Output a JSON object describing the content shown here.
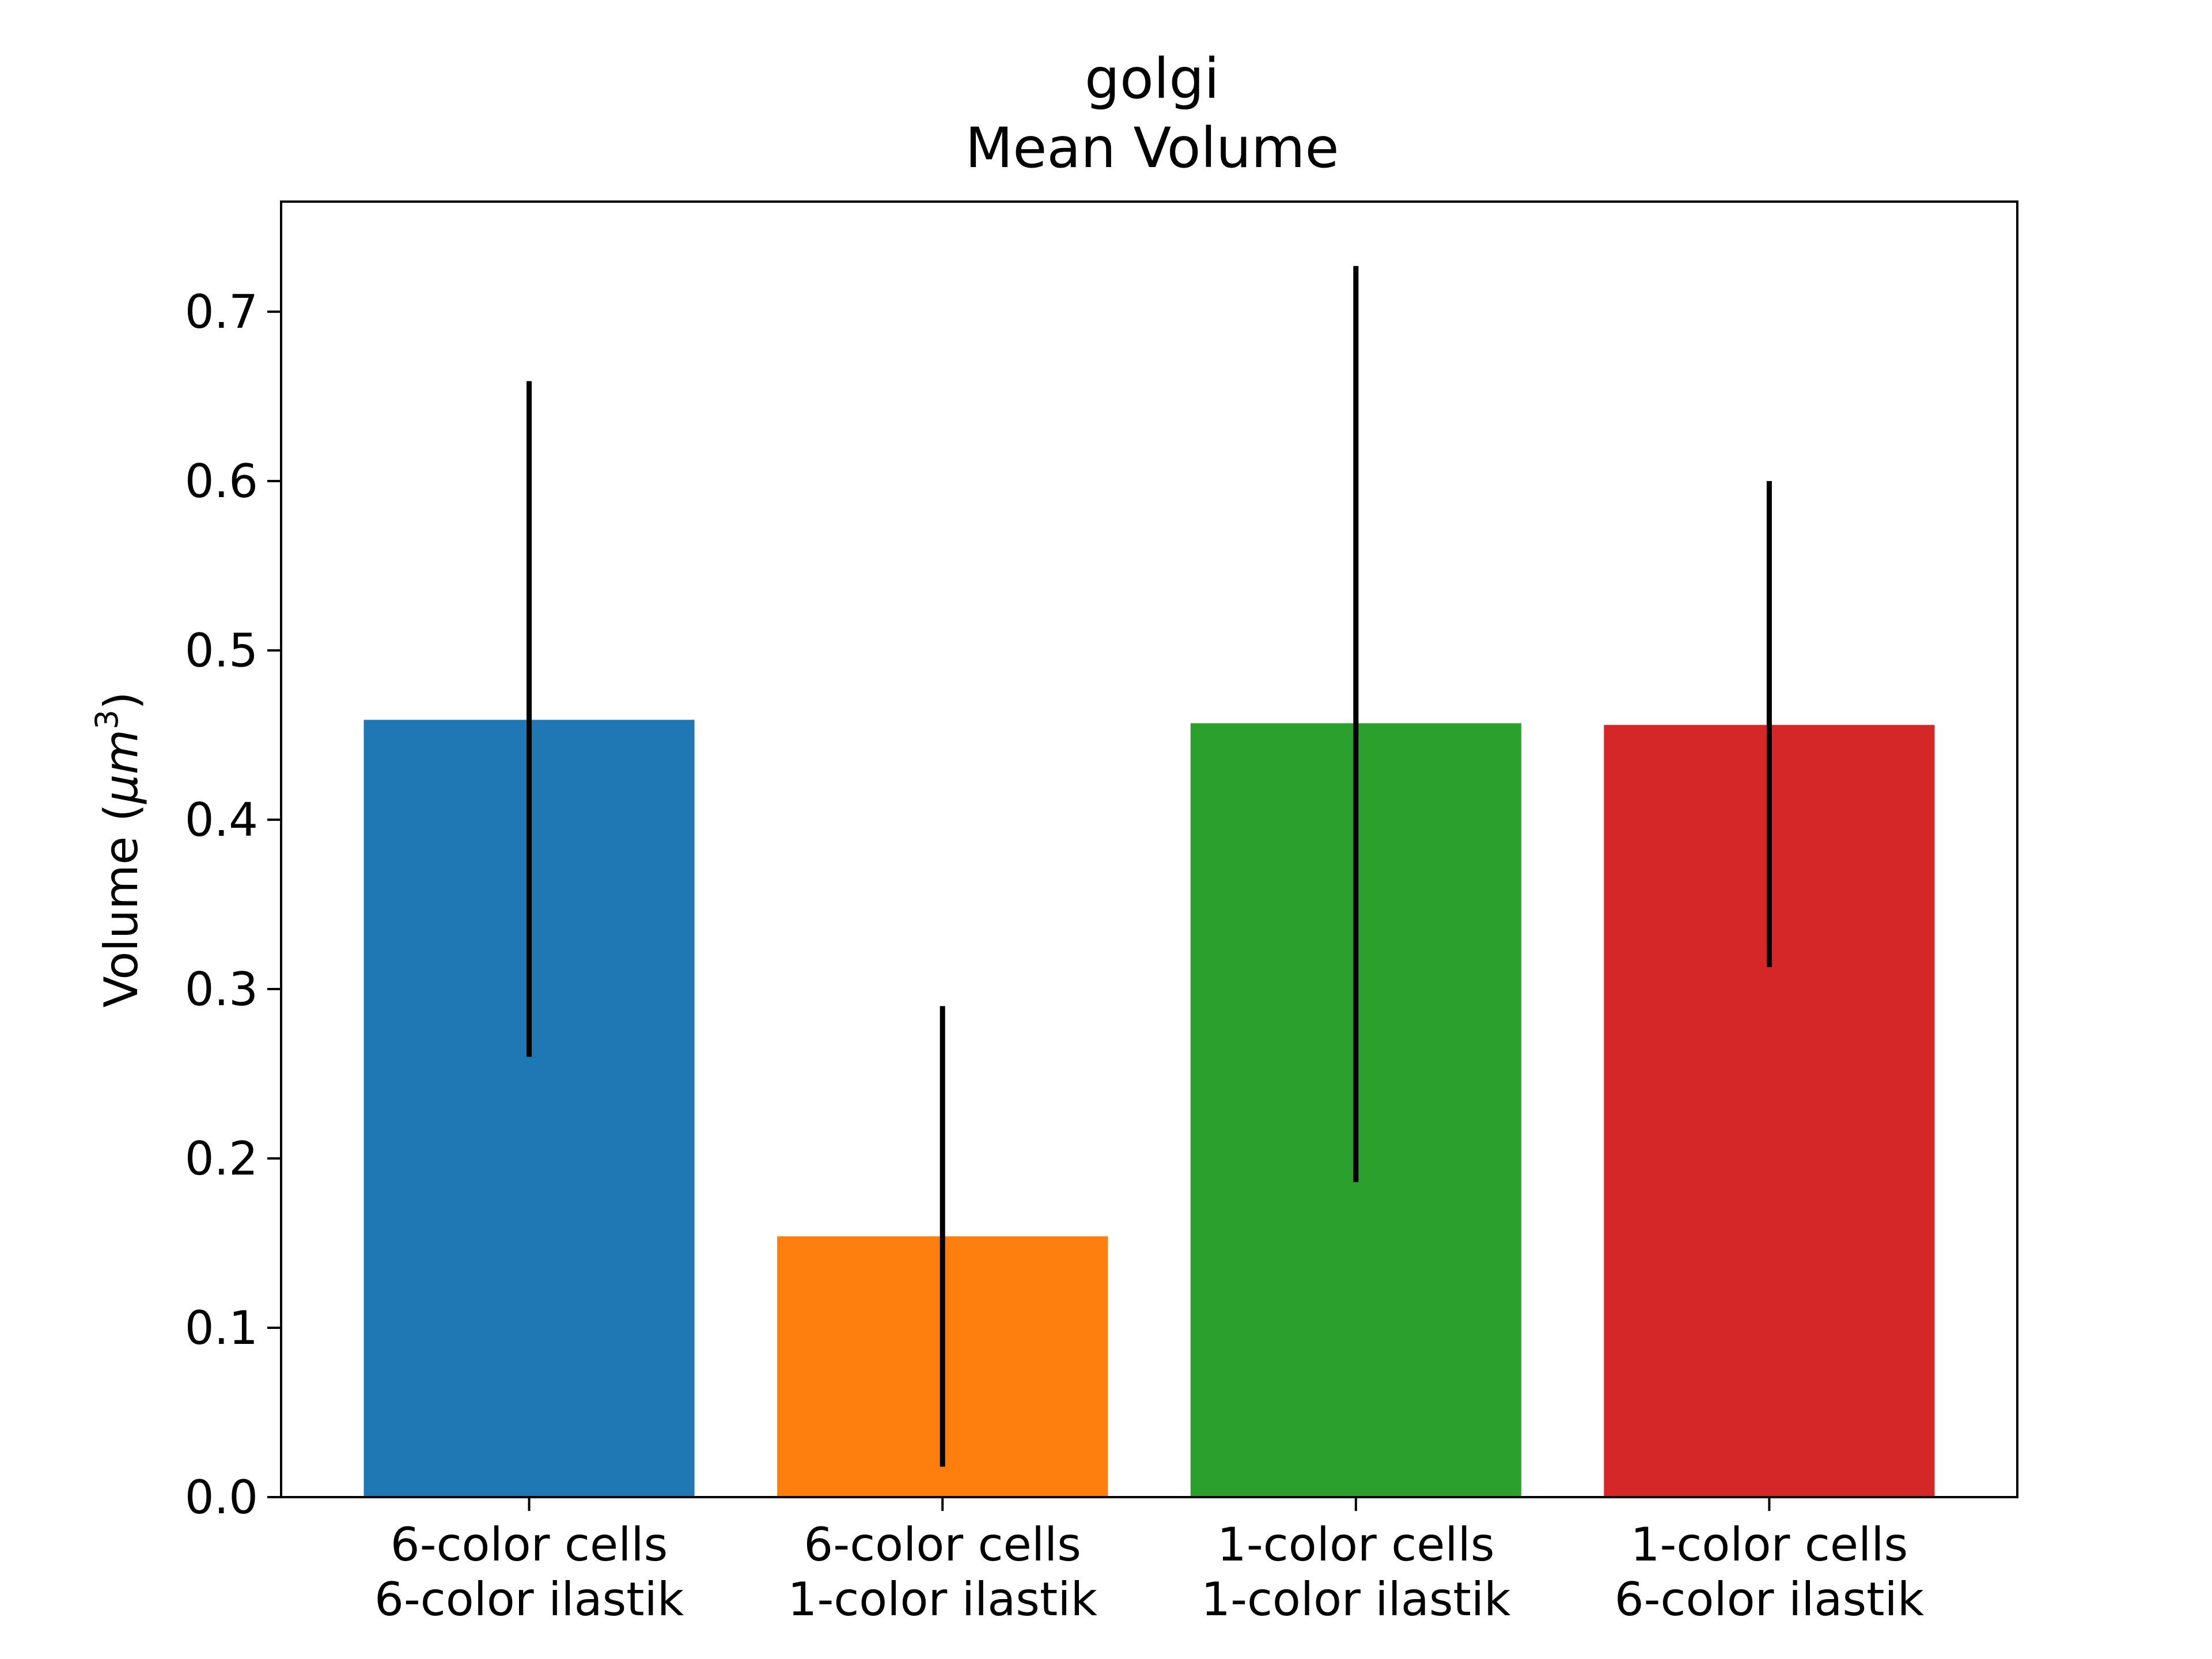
{
  "chart_data": {
    "type": "bar",
    "title_line1": "golgi",
    "title_line2": "Mean Volume",
    "ylabel_prefix": "Volume (",
    "ylabel_mu": "μ",
    "ylabel_unit": "m",
    "ylabel_sup": "3",
    "ylabel_suffix": ")",
    "xlabel": "",
    "ylim": [
      0,
      0.765
    ],
    "yticks": [
      {
        "value": 0.0,
        "label": "0.0"
      },
      {
        "value": 0.1,
        "label": "0.1"
      },
      {
        "value": 0.2,
        "label": "0.2"
      },
      {
        "value": 0.3,
        "label": "0.3"
      },
      {
        "value": 0.4,
        "label": "0.4"
      },
      {
        "value": 0.5,
        "label": "0.5"
      },
      {
        "value": 0.6,
        "label": "0.6"
      },
      {
        "value": 0.7,
        "label": "0.7"
      }
    ],
    "categories": [
      {
        "line1": "6-color cells",
        "line2": "6-color ilastik"
      },
      {
        "line1": "6-color cells",
        "line2": "1-color ilastik"
      },
      {
        "line1": "1-color cells",
        "line2": "1-color ilastik"
      },
      {
        "line1": "1-color cells",
        "line2": "6-color ilastik"
      }
    ],
    "values": [
      0.459,
      0.154,
      0.457,
      0.456
    ],
    "error_low": [
      0.26,
      0.018,
      0.186,
      0.313
    ],
    "error_high": [
      0.659,
      0.29,
      0.727,
      0.6
    ],
    "colors": [
      "#1f77b4",
      "#ff7f0e",
      "#2ca02c",
      "#d62728"
    ],
    "grid": false,
    "legend": "none"
  }
}
